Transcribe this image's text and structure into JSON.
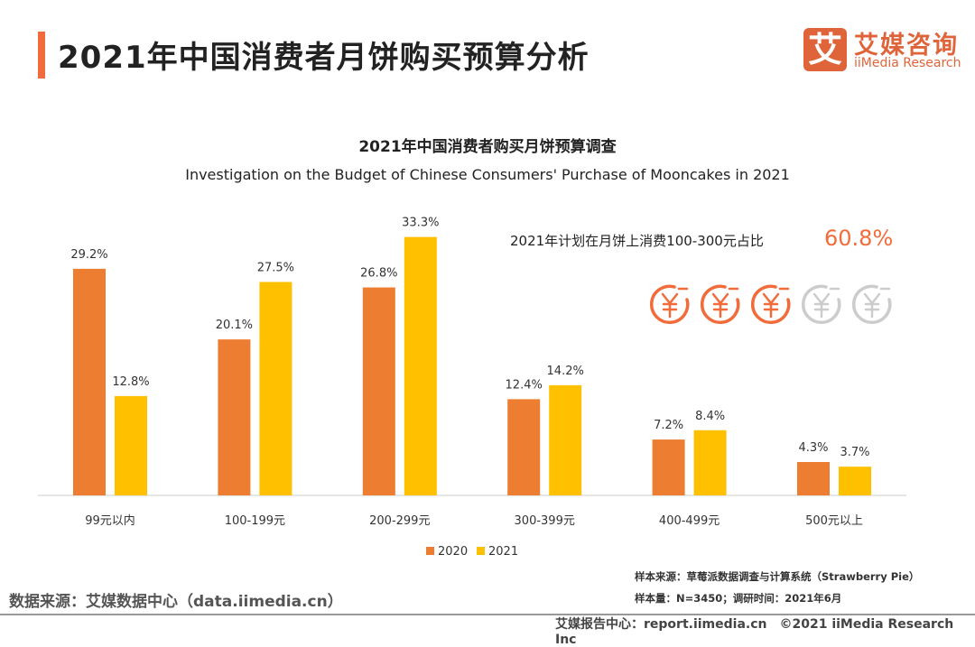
{
  "header": {
    "title": "2021年中国消费者月饼购买预算分析",
    "logo_glyph": "艾",
    "logo_cn": "艾媒咨询",
    "logo_en": "iiMedia Research"
  },
  "highlight": {
    "label": "2021年计划在月饼上消费100-300元占比",
    "value": "60.8%",
    "icons_filled": 3,
    "icons_total": 5,
    "icon": "yuan-coin-icon"
  },
  "colors": {
    "s2020": "#ed7d31",
    "s2021": "#ffc000",
    "accent": "#f26b3a",
    "icon_off": "#cccccc"
  },
  "chart_data": {
    "type": "bar",
    "title": "2021年中国消费者购买月饼预算调查",
    "subtitle": "Investigation on the Budget of Chinese Consumers' Purchase of Mooncakes in 2021",
    "categories": [
      "99元以内",
      "100-199元",
      "200-299元",
      "300-399元",
      "400-499元",
      "500元以上"
    ],
    "series": [
      {
        "name": "2020",
        "values": [
          29.2,
          20.1,
          26.8,
          12.4,
          7.2,
          4.3
        ],
        "labels": [
          "29.2%",
          "20.1%",
          "26.8%",
          "12.4%",
          "7.2%",
          "4.3%"
        ]
      },
      {
        "name": "2021",
        "values": [
          12.8,
          27.5,
          33.3,
          14.2,
          8.4,
          3.7
        ],
        "labels": [
          "12.8%",
          "27.5%",
          "33.3%",
          "14.2%",
          "8.4%",
          "3.7%"
        ]
      }
    ],
    "ylim": [
      0,
      35
    ],
    "grid": false,
    "legend": "bottom",
    "unit": "%"
  },
  "footer": {
    "sample_source": "样本来源：草莓派数据调查与计算系统（Strawberry Pie）",
    "sample_size": "样本量：N=3450；调研时间：2021年6月",
    "data_source": "数据来源：艾媒数据中心（data.iimedia.cn）",
    "report": "艾媒报告中心：report.iimedia.cn　©2021  iiMedia Research  Inc"
  }
}
